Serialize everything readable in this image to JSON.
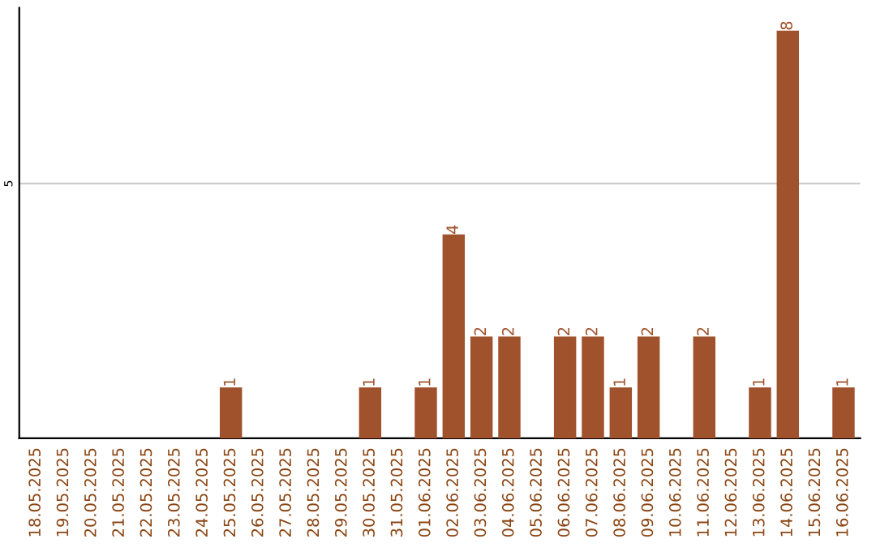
{
  "chart_data": {
    "type": "bar",
    "categories": [
      "18.05.2025",
      "19.05.2025",
      "20.05.2025",
      "21.05.2025",
      "22.05.2025",
      "23.05.2025",
      "24.05.2025",
      "25.05.2025",
      "26.05.2025",
      "27.05.2025",
      "28.05.2025",
      "29.05.2025",
      "30.05.2025",
      "31.05.2025",
      "01.06.2025",
      "02.06.2025",
      "03.06.2025",
      "04.06.2025",
      "05.06.2025",
      "06.06.2025",
      "07.06.2025",
      "08.06.2025",
      "09.06.2025",
      "10.06.2025",
      "11.06.2025",
      "12.06.2025",
      "13.06.2025",
      "14.06.2025",
      "15.06.2025",
      "16.06.2025"
    ],
    "values": [
      0,
      0,
      0,
      0,
      0,
      0,
      0,
      1,
      0,
      0,
      0,
      0,
      1,
      0,
      1,
      4,
      2,
      2,
      0,
      2,
      2,
      1,
      2,
      0,
      2,
      0,
      1,
      8,
      0,
      1
    ],
    "value_labels": [
      null,
      null,
      null,
      null,
      null,
      null,
      null,
      "1",
      null,
      null,
      null,
      null,
      "1",
      null,
      "1",
      "4",
      "2",
      "2",
      null,
      "2",
      "2",
      "1",
      "2",
      null,
      "2",
      null,
      "1",
      "8",
      null,
      "1"
    ],
    "color": "#a0522d",
    "ylim": [
      0,
      8.45
    ],
    "yticks": [
      5
    ],
    "grid": "y",
    "legend": false
  }
}
